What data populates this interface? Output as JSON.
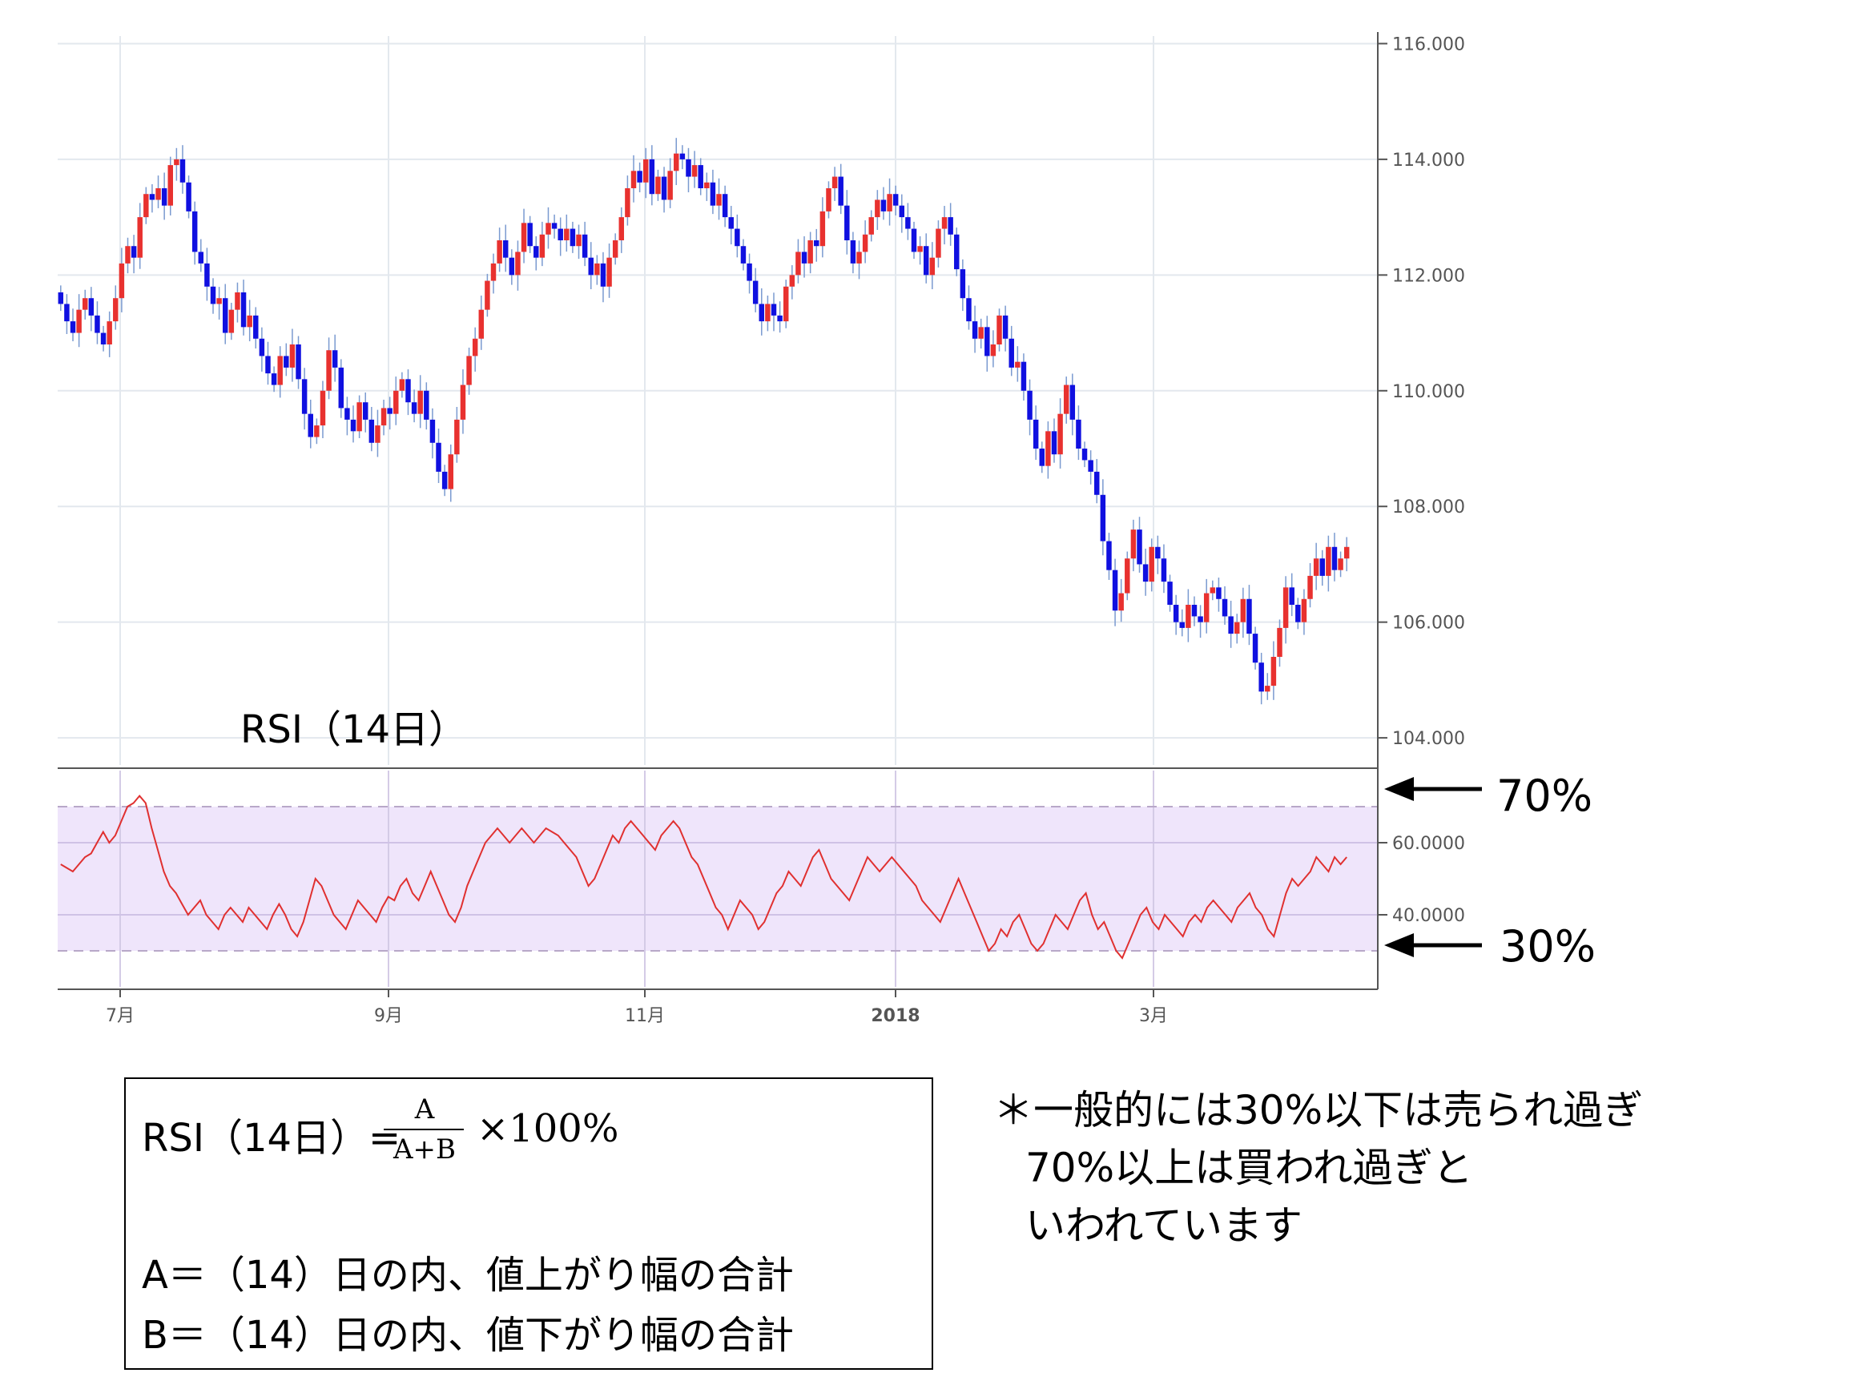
{
  "chart_data": [
    {
      "type": "candlestick",
      "title": "",
      "y_ticks": [
        "104.000",
        "106.000",
        "108.000",
        "110.000",
        "112.000",
        "114.000",
        "116.000"
      ],
      "ylim": [
        103.6,
        116.2
      ],
      "up_color": "#e8312f",
      "down_color": "#1010e0",
      "closes": [
        111.5,
        111.2,
        111.0,
        111.4,
        111.6,
        111.3,
        111.0,
        110.8,
        111.2,
        111.6,
        112.2,
        112.5,
        112.3,
        113.0,
        113.4,
        113.3,
        113.5,
        113.2,
        113.9,
        114.0,
        113.6,
        113.1,
        112.4,
        112.2,
        111.8,
        111.5,
        111.6,
        111.0,
        111.4,
        111.7,
        111.1,
        111.3,
        110.9,
        110.6,
        110.3,
        110.1,
        110.6,
        110.4,
        110.8,
        110.2,
        109.6,
        109.2,
        109.4,
        110.0,
        110.7,
        110.4,
        109.7,
        109.5,
        109.3,
        109.8,
        109.5,
        109.1,
        109.4,
        109.7,
        109.6,
        110.0,
        110.2,
        109.8,
        109.6,
        110.0,
        109.5,
        109.1,
        108.6,
        108.3,
        108.9,
        109.5,
        110.1,
        110.6,
        110.9,
        111.4,
        111.9,
        112.2,
        112.6,
        112.3,
        112.0,
        112.4,
        112.9,
        112.5,
        112.3,
        112.7,
        112.9,
        112.8,
        112.6,
        112.8,
        112.5,
        112.7,
        112.3,
        112.0,
        112.2,
        111.8,
        112.3,
        112.6,
        113.0,
        113.5,
        113.8,
        113.6,
        114.0,
        113.4,
        113.7,
        113.3,
        113.8,
        114.1,
        114.0,
        113.7,
        113.9,
        113.5,
        113.6,
        113.2,
        113.4,
        113.0,
        112.8,
        112.5,
        112.2,
        111.9,
        111.5,
        111.2,
        111.5,
        111.3,
        111.2,
        111.8,
        112.0,
        112.4,
        112.2,
        112.6,
        112.5,
        113.1,
        113.5,
        113.7,
        113.2,
        112.6,
        112.2,
        112.4,
        112.7,
        113.0,
        113.3,
        113.1,
        113.4,
        113.2,
        113.0,
        112.8,
        112.4,
        112.5,
        112.0,
        112.3,
        112.8,
        113.0,
        112.7,
        112.1,
        111.6,
        111.2,
        110.9,
        111.1,
        110.6,
        110.8,
        111.3,
        110.9,
        110.4,
        110.5,
        110.0,
        109.5,
        109.0,
        108.7,
        109.3,
        108.9,
        109.6,
        110.1,
        109.5,
        109.0,
        108.8,
        108.6,
        108.2,
        107.4,
        106.9,
        106.2,
        106.5,
        107.1,
        107.6,
        107.0,
        106.7,
        107.3,
        107.1,
        106.7,
        106.3,
        106.0,
        105.9,
        106.3,
        106.1,
        106.0,
        106.5,
        106.6,
        106.4,
        106.1,
        105.8,
        106.0,
        106.4,
        105.8,
        105.3,
        104.8,
        104.9,
        105.4,
        105.9,
        106.6,
        106.3,
        106.0,
        106.4,
        106.8,
        107.1,
        106.8,
        107.3,
        106.9,
        107.1,
        107.3
      ]
    },
    {
      "type": "line",
      "title": "",
      "y_ticks": [
        "40.0000",
        "60.0000"
      ],
      "ylim": [
        20,
        80
      ],
      "line_color": "#e03030",
      "band": [
        30,
        70
      ],
      "band_color": "#e8dcf8",
      "x_ticks": [
        "7月",
        "9月",
        "11月",
        "2018",
        "3月"
      ],
      "values": [
        54,
        53,
        52,
        54,
        56,
        57,
        60,
        63,
        60,
        62,
        66,
        70,
        71,
        73,
        71,
        64,
        58,
        52,
        48,
        46,
        43,
        40,
        42,
        44,
        40,
        38,
        36,
        40,
        42,
        40,
        38,
        42,
        40,
        38,
        36,
        40,
        43,
        40,
        36,
        34,
        38,
        44,
        50,
        48,
        44,
        40,
        38,
        36,
        40,
        44,
        42,
        40,
        38,
        42,
        45,
        44,
        48,
        50,
        46,
        44,
        48,
        52,
        48,
        44,
        40,
        38,
        42,
        48,
        52,
        56,
        60,
        62,
        64,
        62,
        60,
        62,
        64,
        62,
        60,
        62,
        64,
        63,
        62,
        60,
        58,
        56,
        52,
        48,
        50,
        54,
        58,
        62,
        60,
        64,
        66,
        64,
        62,
        60,
        58,
        62,
        64,
        66,
        64,
        60,
        56,
        54,
        50,
        46,
        42,
        40,
        36,
        40,
        44,
        42,
        40,
        36,
        38,
        42,
        46,
        48,
        52,
        50,
        48,
        52,
        56,
        58,
        54,
        50,
        48,
        46,
        44,
        48,
        52,
        56,
        54,
        52,
        54,
        56,
        54,
        52,
        50,
        48,
        44,
        42,
        40,
        38,
        42,
        46,
        50,
        46,
        42,
        38,
        34,
        30,
        32,
        36,
        34,
        38,
        40,
        36,
        32,
        30,
        32,
        36,
        40,
        38,
        36,
        40,
        44,
        46,
        40,
        36,
        38,
        34,
        30,
        28,
        32,
        36,
        40,
        42,
        38,
        36,
        40,
        38,
        36,
        34,
        38,
        40,
        38,
        42,
        44,
        42,
        40,
        38,
        42,
        44,
        46,
        42,
        40,
        36,
        34,
        40,
        46,
        50,
        48,
        50,
        52,
        56,
        54,
        52,
        56,
        54,
        56
      ]
    }
  ],
  "labels": {
    "rsi_title": "RSI（14日）",
    "arrow_70": "70%",
    "arrow_30": "30%"
  },
  "formula": {
    "lhs": "RSI（14日）=",
    "numerator": "A",
    "denominator": "A+B",
    "times": "×100%",
    "line_a": "A＝（14）日の内、値上がり幅の合計",
    "line_b": "B＝（14）日の内、値下がり幅の合計"
  },
  "note": {
    "line1": "＊一般的には30%以下は売られ過ぎ",
    "line2": "70%以上は買われ過ぎと",
    "line3": "いわれています"
  }
}
